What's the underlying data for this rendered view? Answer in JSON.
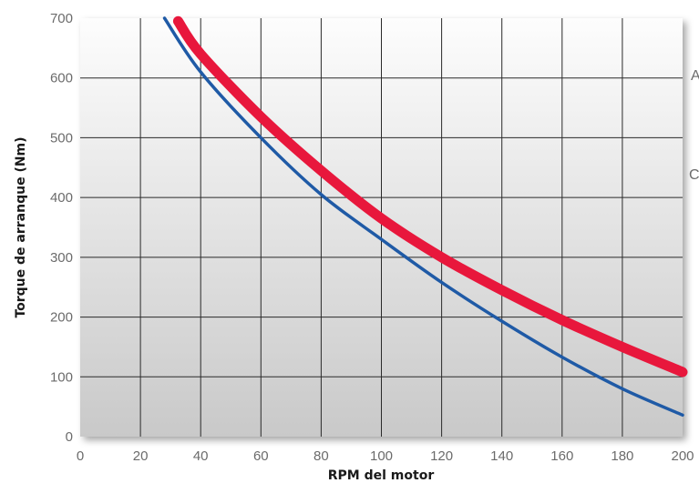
{
  "chart_data": {
    "type": "line",
    "xlabel": "RPM del motor",
    "ylabel": "Torque de arranque (Nm)",
    "xlim": [
      0,
      200
    ],
    "ylim": [
      0,
      700
    ],
    "x_ticks": [
      "0",
      "20",
      "40",
      "60",
      "80",
      "100",
      "120",
      "140",
      "160",
      "180",
      "200"
    ],
    "y_ticks": [
      "0",
      "100",
      "200",
      "300",
      "400",
      "500",
      "600",
      "700"
    ],
    "grid": true,
    "series": [
      {
        "color": "#1f5aa6",
        "x": [
          28,
          40,
          60,
          80,
          100,
          120,
          140,
          160,
          180,
          200
        ],
        "y": [
          700,
          610,
          500,
          405,
          330,
          258,
          193,
          133,
          80,
          36
        ]
      },
      {
        "color": "#e8173c",
        "x": [
          32.5,
          40,
          60,
          80,
          100,
          120,
          140,
          160,
          180,
          200
        ],
        "y": [
          695,
          640,
          535,
          445,
          365,
          300,
          245,
          195,
          150,
          108
        ]
      }
    ],
    "cut_off_text": [
      "A",
      "C"
    ]
  },
  "colors": {
    "plot_top": "#fdfdfd",
    "plot_bottom": "#c9c9c9",
    "grid": "#2a2a2a"
  }
}
